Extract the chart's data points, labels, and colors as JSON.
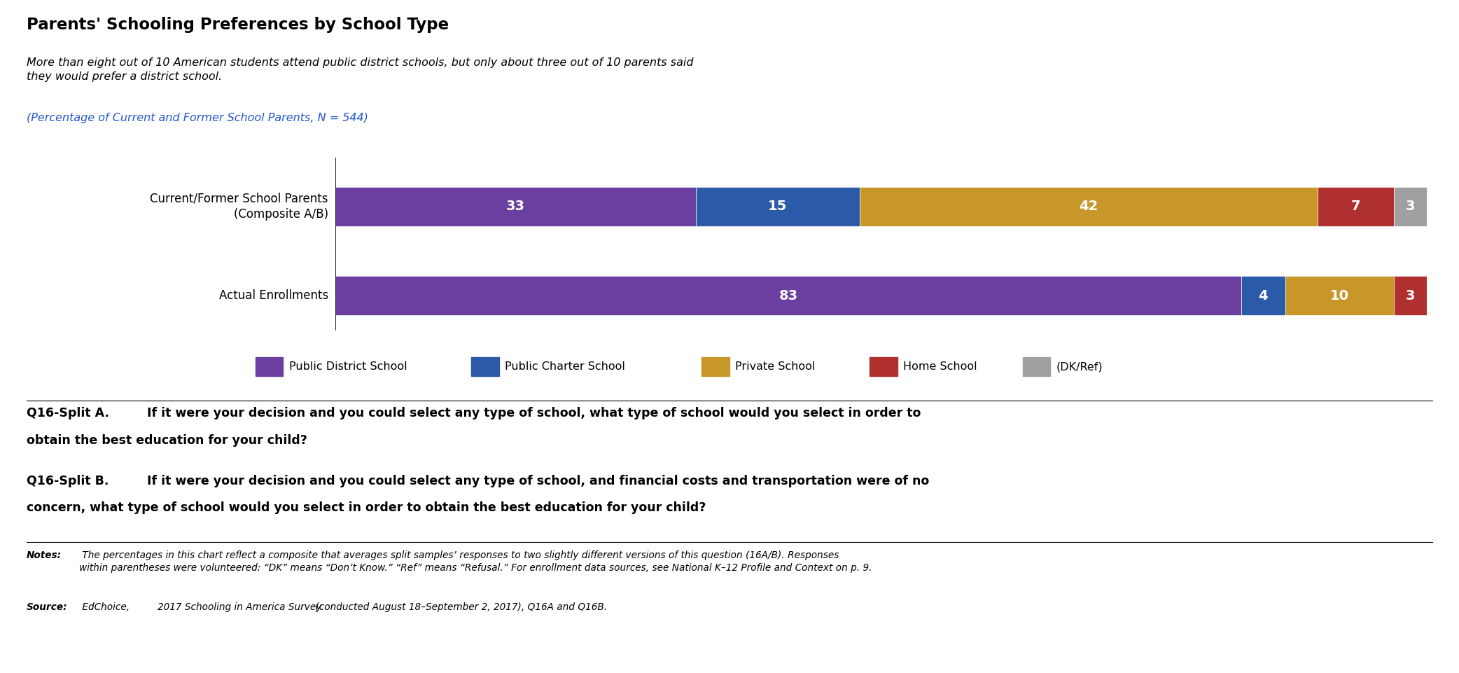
{
  "title": "Parents' Schooling Preferences by School Type",
  "subtitle": "More than eight out of 10 American students attend public district schools, but only about three out of 10 parents said\nthey would prefer a district school.",
  "caption": "(Percentage of Current and Former School Parents, N = 544)",
  "rows": [
    {
      "label": "Current/Former School Parents\n(Composite A/B)",
      "values": [
        33,
        15,
        42,
        7,
        3
      ]
    },
    {
      "label": "Actual Enrollments",
      "values": [
        83,
        4,
        10,
        3,
        0
      ]
    }
  ],
  "categories": [
    "Public District School",
    "Public Charter School",
    "Private School",
    "Home School",
    "(DK/Ref)"
  ],
  "colors": [
    "#6B3FA0",
    "#2B5BA8",
    "#C8972A",
    "#B03030",
    "#A0A0A0"
  ],
  "question_a": "Q16-Split A.  If it were your decision and you could select any type of school, what type of school would you select in order to\nobtain the best education for your child?",
  "question_b": "Q16-Split B.  If it were your decision and you could select any type of school, and financial costs and transportation were of no\nconcern, what type of school would you select in order to obtain the best education for your child?",
  "notes_label": "Notes:",
  "notes_body": " The percentages in this chart reflect a composite that averages split samples’ responses to two slightly different versions of this question (16A/B). Responses\nwithin parentheses were volunteered: “DK” means “Don’t Know.” “Ref” means “Refusal.” For enrollment data sources, see National K–12 Profile and Context on p. 9.",
  "source_label": "Source:",
  "source_body": " EdChoice, ",
  "source_italic": "2017 Schooling in America Survey",
  "source_tail": " (conducted August 18–September 2, 2017), Q16A and Q16B."
}
